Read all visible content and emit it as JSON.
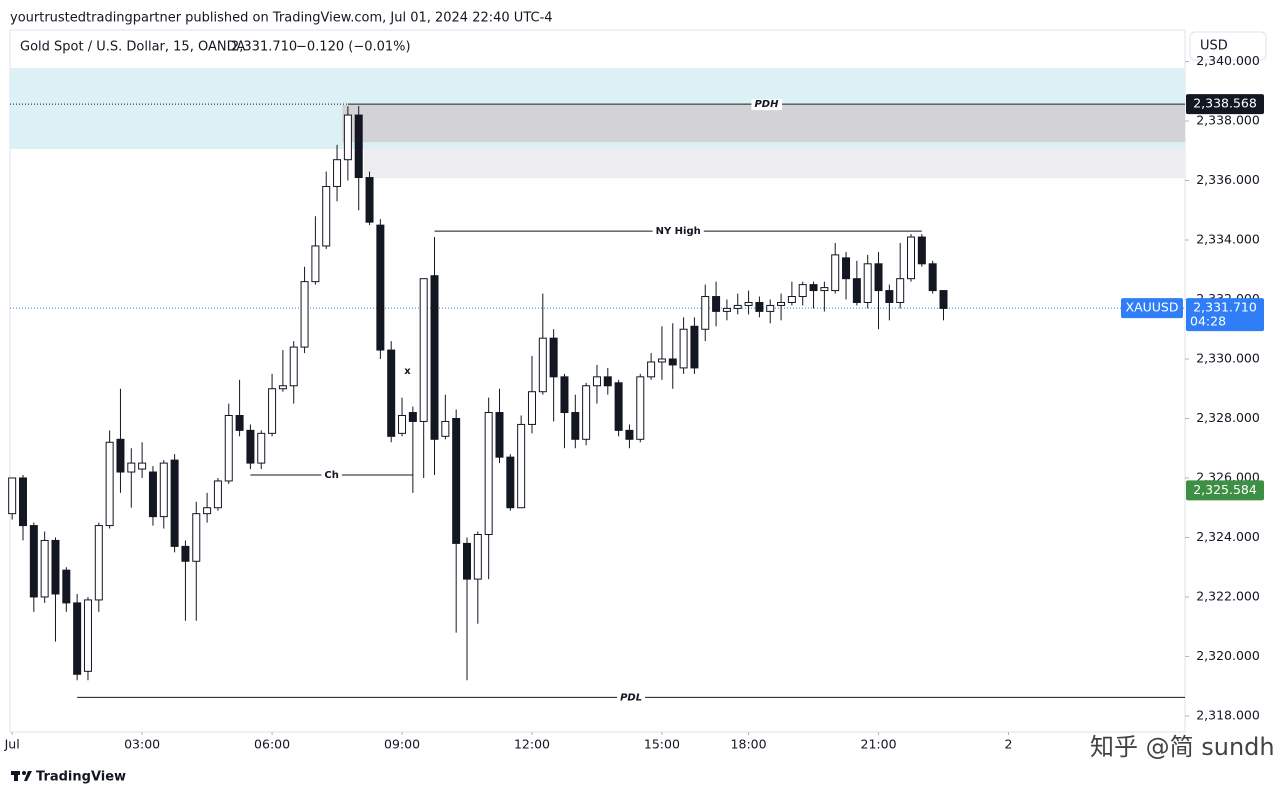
{
  "header": {
    "publisher": "yourtrustedtradingpartner published on TradingView.com, Jul 01, 2024 22:40 UTC-4"
  },
  "footer": {
    "brand": "TradingView"
  },
  "watermark": "知乎 @简 sundh",
  "chart_data": {
    "type": "candlestick",
    "title": "Gold Spot / U.S. Dollar, 15, OANDA",
    "last": {
      "value": 2331.71,
      "label": "2,331.710"
    },
    "change": "−0.120 (−0.01%)",
    "currency": "USD",
    "up_color": "#ffffff",
    "down_color": "#131722",
    "border_color": "#131722",
    "open": [
      2324.8,
      2326.0,
      2324.4,
      2322.0,
      2323.9,
      2322.9,
      2321.8,
      2319.5,
      2321.9,
      2324.4,
      2327.3,
      2326.2,
      2326.3,
      2326.2,
      2324.7,
      2326.6,
      2323.7,
      2323.2,
      2324.8,
      2325.0,
      2325.9,
      2328.1,
      2327.6,
      2326.5,
      2327.5,
      2329.0,
      2329.1,
      2330.4,
      2332.6,
      2333.8,
      2335.8,
      2336.7,
      2338.2,
      2336.1,
      2334.5,
      2330.3,
      2327.5,
      2328.2,
      2327.9,
      2332.8,
      2327.4,
      2328.0,
      2323.8,
      2322.6,
      2324.1,
      2328.2,
      2326.7,
      2325.0,
      2327.8,
      2328.9,
      2330.7,
      2329.4,
      2328.2,
      2327.3,
      2329.1,
      2329.4,
      2329.2,
      2327.6,
      2327.3,
      2329.4,
      2329.9,
      2330.0,
      2329.7,
      2331.1,
      2331.0,
      2332.1,
      2331.6,
      2331.7,
      2331.8,
      2331.9,
      2331.6,
      2331.8,
      2331.9,
      2332.1,
      2332.5,
      2332.3,
      2332.3,
      2333.4,
      2332.7,
      2331.9,
      2333.2,
      2332.3,
      2331.9,
      2332.7,
      2334.1,
      2333.2,
      2332.3
    ],
    "high": [
      2326.0,
      2326.1,
      2324.5,
      2324.2,
      2324.0,
      2323.0,
      2322.1,
      2322.0,
      2324.5,
      2327.6,
      2329.0,
      2327.0,
      2327.2,
      2326.4,
      2326.6,
      2326.8,
      2323.9,
      2325.2,
      2325.5,
      2326.0,
      2328.5,
      2329.3,
      2327.8,
      2327.6,
      2329.5,
      2330.3,
      2330.6,
      2333.1,
      2334.8,
      2336.3,
      2337.2,
      2338.5,
      2338.5,
      2336.3,
      2334.7,
      2330.6,
      2328.7,
      2328.4,
      2332.7,
      2334.1,
      2328.8,
      2328.3,
      2324.0,
      2324.2,
      2328.7,
      2329.0,
      2326.8,
      2328.1,
      2330.1,
      2332.2,
      2331.0,
      2329.5,
      2328.8,
      2329.2,
      2329.8,
      2329.7,
      2329.3,
      2327.8,
      2329.5,
      2330.2,
      2331.1,
      2331.2,
      2331.4,
      2331.4,
      2332.5,
      2332.6,
      2332.0,
      2332.2,
      2332.3,
      2332.1,
      2332.0,
      2332.2,
      2332.6,
      2332.6,
      2332.6,
      2332.6,
      2333.9,
      2333.6,
      2333.3,
      2333.5,
      2333.6,
      2332.5,
      2333.9,
      2334.2,
      2334.2,
      2333.3,
      2332.3
    ],
    "low": [
      2324.6,
      2323.9,
      2321.5,
      2321.8,
      2320.5,
      2321.5,
      2319.2,
      2319.2,
      2321.5,
      2324.3,
      2325.5,
      2325.0,
      2326.0,
      2324.4,
      2324.3,
      2323.5,
      2321.2,
      2321.2,
      2324.5,
      2324.9,
      2325.8,
      2327.4,
      2326.3,
      2326.3,
      2327.4,
      2328.9,
      2328.5,
      2330.2,
      2332.5,
      2333.7,
      2335.3,
      2336.0,
      2335.0,
      2334.5,
      2330.0,
      2327.2,
      2327.4,
      2325.5,
      2326.0,
      2326.1,
      2327.3,
      2320.8,
      2319.2,
      2321.1,
      2322.6,
      2326.5,
      2324.9,
      2325.0,
      2327.5,
      2328.8,
      2327.9,
      2327.0,
      2327.0,
      2327.1,
      2328.5,
      2328.8,
      2327.4,
      2327.0,
      2327.2,
      2329.3,
      2329.3,
      2329.0,
      2329.5,
      2329.5,
      2330.6,
      2331.1,
      2331.3,
      2331.5,
      2331.5,
      2331.4,
      2331.2,
      2331.3,
      2331.8,
      2331.8,
      2331.7,
      2331.6,
      2332.2,
      2332.0,
      2331.8,
      2331.7,
      2331.0,
      2331.3,
      2331.7,
      2332.6,
      2333.1,
      2332.2,
      2331.3
    ],
    "close": [
      2326.0,
      2324.4,
      2322.0,
      2323.9,
      2322.1,
      2321.8,
      2319.4,
      2321.9,
      2324.4,
      2327.2,
      2326.2,
      2326.5,
      2326.5,
      2324.7,
      2326.5,
      2323.7,
      2323.2,
      2324.8,
      2325.0,
      2325.9,
      2328.1,
      2327.6,
      2326.5,
      2327.5,
      2329.0,
      2329.1,
      2330.4,
      2332.6,
      2333.8,
      2335.8,
      2336.7,
      2338.2,
      2336.1,
      2334.6,
      2330.3,
      2327.4,
      2328.1,
      2327.9,
      2332.7,
      2327.3,
      2327.9,
      2323.8,
      2322.6,
      2324.1,
      2328.2,
      2326.7,
      2325.0,
      2327.8,
      2328.9,
      2330.7,
      2329.4,
      2328.2,
      2327.3,
      2329.1,
      2329.4,
      2329.1,
      2327.6,
      2327.3,
      2329.4,
      2329.9,
      2330.0,
      2329.8,
      2331.0,
      2329.7,
      2332.1,
      2331.6,
      2331.7,
      2331.8,
      2331.9,
      2331.6,
      2331.8,
      2331.9,
      2332.1,
      2332.5,
      2332.3,
      2332.4,
      2333.5,
      2332.7,
      2331.9,
      2333.2,
      2332.3,
      2331.9,
      2332.7,
      2334.1,
      2333.2,
      2332.3,
      2331.7
    ],
    "xlim": [
      -0.2,
      108.3
    ],
    "xticks": [
      {
        "value": 0,
        "label": "Jul"
      },
      {
        "value": 12,
        "label": "03:00"
      },
      {
        "value": 24,
        "label": "06:00"
      },
      {
        "value": 36,
        "label": "09:00"
      },
      {
        "value": 48,
        "label": "12:00"
      },
      {
        "value": 60,
        "label": "15:00"
      },
      {
        "value": 68,
        "label": "18:00"
      },
      {
        "value": 80,
        "label": "21:00"
      },
      {
        "value": 92,
        "label": "2"
      }
    ],
    "ylim": [
      2317.46,
      2341.06
    ],
    "yticks": [
      {
        "value": 2318,
        "label": "2,318.000"
      },
      {
        "value": 2320,
        "label": "2,320.000"
      },
      {
        "value": 2322,
        "label": "2,322.000"
      },
      {
        "value": 2324,
        "label": "2,324.000"
      },
      {
        "value": 2326,
        "label": "2,326.000"
      },
      {
        "value": 2328,
        "label": "2,328.000"
      },
      {
        "value": 2330,
        "label": "2,330.000"
      },
      {
        "value": 2332,
        "label": "2,332.000"
      },
      {
        "value": 2334,
        "label": "2,334.000"
      },
      {
        "value": 2336,
        "label": "2,336.000"
      },
      {
        "value": 2338,
        "label": "2,338.000"
      },
      {
        "value": 2340,
        "label": "2,340.000"
      }
    ],
    "zones": [
      {
        "top": 2339.78,
        "bottom": 2337.06,
        "start": 0,
        "color": "#dcf1f5"
      },
      {
        "top": 2338.54,
        "bottom": 2337.29,
        "start": 31,
        "color": "#d3d3d6"
      },
      {
        "top": 2337.06,
        "bottom": 2336.08,
        "start": 33,
        "color": "#ededef"
      }
    ],
    "levels": [
      {
        "label": "PDH",
        "value": 2338.568,
        "start": 31,
        "italic": true
      },
      {
        "label": "NY High",
        "value": 2334.3,
        "start": 39,
        "end": 84
      },
      {
        "label": "Ch",
        "value": 2326.1,
        "start": 22,
        "end": 37
      },
      {
        "label": "PDL",
        "value": 2318.622,
        "start": 6,
        "italic": true
      }
    ],
    "marks": [
      {
        "text": "x",
        "value": 2329.6,
        "x": 36.5
      }
    ],
    "price_tags": [
      {
        "value": 2338.568,
        "label": "2,338.568",
        "color": "#131722"
      },
      {
        "value": 2331.71,
        "label": "2,331.710",
        "color": "#2f7ef7",
        "symbol": "XAUUSD",
        "countdown": "04:28"
      },
      {
        "value": 2325.584,
        "label": "2,325.584",
        "color": "#3c8f43"
      }
    ]
  }
}
